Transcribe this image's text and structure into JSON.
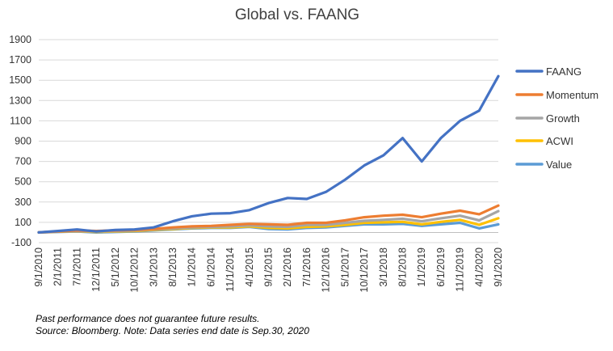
{
  "chart_data": {
    "type": "line",
    "title": "Global vs. FAANG",
    "xlabel": "",
    "ylabel": "",
    "ylim": [
      -100,
      1900
    ],
    "y_ticks": [
      "1900",
      "1700",
      "1500",
      "1300",
      "1100",
      "900",
      "700",
      "500",
      "300",
      "100",
      "-100"
    ],
    "y_tick_values": [
      1900,
      1700,
      1500,
      1300,
      1100,
      900,
      700,
      500,
      300,
      100,
      -100
    ],
    "x_ticks": [
      "9/1/2010",
      "2/1/2011",
      "7/1/2011",
      "12/1/2011",
      "5/1/2012",
      "10/1/2012",
      "3/1/2013",
      "8/1/2013",
      "1/1/2014",
      "6/1/2014",
      "11/1/2014",
      "4/1/2015",
      "9/1/2015",
      "2/1/2016",
      "7/1/2016",
      "12/1/2016",
      "5/1/2017",
      "10/1/2017",
      "3/1/2018",
      "8/1/2018",
      "1/1/2019",
      "6/1/2019",
      "11/1/2019",
      "4/1/2020",
      "9/1/2020"
    ],
    "x": [
      "9/1/2010",
      "2/1/2011",
      "7/1/2011",
      "12/1/2011",
      "5/1/2012",
      "10/1/2012",
      "3/1/2013",
      "8/1/2013",
      "1/1/2014",
      "6/1/2014",
      "11/1/2014",
      "4/1/2015",
      "9/1/2015",
      "2/1/2016",
      "7/1/2016",
      "12/1/2016",
      "5/1/2017",
      "10/1/2017",
      "3/1/2018",
      "8/1/2018",
      "1/1/2019",
      "6/1/2019",
      "11/1/2019",
      "4/1/2020",
      "9/1/2020"
    ],
    "series": [
      {
        "name": "FAANG",
        "color": "#4472C4",
        "values": [
          0,
          15,
          30,
          10,
          25,
          30,
          50,
          110,
          160,
          185,
          190,
          220,
          290,
          340,
          330,
          400,
          520,
          660,
          760,
          930,
          700,
          930,
          1100,
          1200,
          1540
        ]
      },
      {
        "name": "Momentum",
        "color": "#ED7D31",
        "values": [
          0,
          10,
          20,
          15,
          20,
          25,
          35,
          50,
          60,
          65,
          75,
          85,
          80,
          75,
          95,
          95,
          120,
          150,
          165,
          175,
          150,
          185,
          215,
          180,
          265
        ]
      },
      {
        "name": "Growth",
        "color": "#A5A5A5",
        "values": [
          0,
          10,
          15,
          10,
          15,
          20,
          30,
          40,
          50,
          55,
          60,
          70,
          60,
          55,
          75,
          75,
          95,
          115,
          125,
          135,
          110,
          140,
          165,
          120,
          210
        ]
      },
      {
        "name": "ACWI",
        "color": "#FFC000",
        "values": [
          0,
          8,
          12,
          5,
          10,
          15,
          25,
          35,
          45,
          50,
          50,
          60,
          45,
          40,
          55,
          60,
          75,
          95,
          100,
          105,
          80,
          105,
          125,
          75,
          140
        ]
      },
      {
        "name": "Value",
        "color": "#5B9BD5",
        "values": [
          0,
          5,
          10,
          0,
          5,
          10,
          20,
          30,
          40,
          45,
          45,
          55,
          35,
          30,
          45,
          50,
          65,
          80,
          80,
          85,
          65,
          80,
          95,
          40,
          80
        ]
      }
    ],
    "legend_position": "right"
  },
  "footnotes": {
    "line1": "Past performance does not guarantee future results.",
    "line2": "Source: Bloomberg.  Note: Data series end date is Sep.30, 2020"
  }
}
